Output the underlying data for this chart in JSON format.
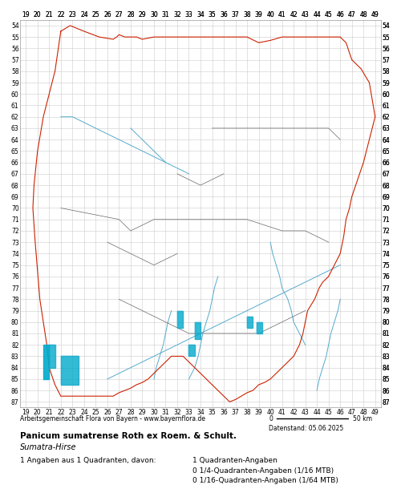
{
  "title_bold": "Panicum sumatrense Roth ex Roem. & Schult.",
  "title_italic": "Sumatra-Hirse",
  "footer_left": "Arbeitsgemeinschaft Flora von Bayern - www.bayernflora.de",
  "footer_date": "Datenstand: 05.06.2025",
  "scale_label": "50 km",
  "stats_line1": "1 Angaben aus 1 Quadranten, davon:",
  "stats_right1": "1 Quadranten-Angaben",
  "stats_right2": "0 1/4-Quadranten-Angaben (1/16 MTB)",
  "stats_right3": "0 1/16-Quadranten-Angaben (1/64 MTB)",
  "x_ticks": [
    19,
    20,
    21,
    22,
    23,
    24,
    25,
    26,
    27,
    28,
    29,
    30,
    31,
    32,
    33,
    34,
    35,
    36,
    37,
    38,
    39,
    40,
    41,
    42,
    43,
    44,
    45,
    46,
    47,
    48,
    49
  ],
  "y_ticks": [
    54,
    55,
    56,
    57,
    58,
    59,
    60,
    61,
    62,
    63,
    64,
    65,
    66,
    67,
    68,
    69,
    70,
    71,
    72,
    73,
    74,
    75,
    76,
    77,
    78,
    79,
    80,
    81,
    82,
    83,
    84,
    85,
    86,
    87
  ],
  "x_min": 18.5,
  "x_max": 49.5,
  "y_min": 53.5,
  "y_max": 87.5,
  "bg_color": "#ffffff",
  "grid_color": "#cccccc",
  "map_area_color": "#ffffff",
  "outer_border_color": "#cc2200",
  "inner_border_color": "#666666",
  "river_color": "#55aacc",
  "data_point_color": "#00aacc",
  "figsize": [
    5.0,
    6.2
  ],
  "dpi": 100
}
